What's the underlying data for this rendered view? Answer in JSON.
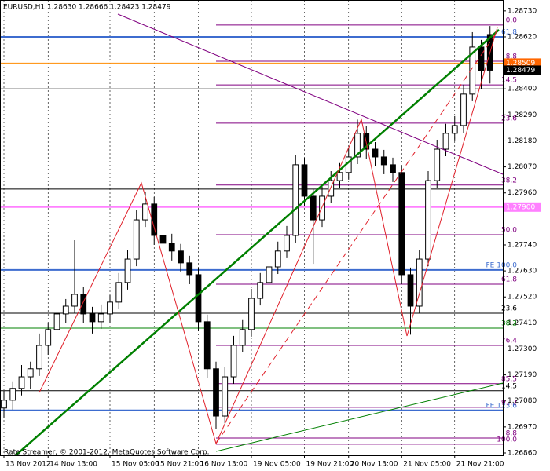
{
  "chart_data": {
    "type": "candlestick",
    "title": "EURUSD,H1  1.28630 1.28666 1.28423 1.28479",
    "watermark": "Rate Streamer, © 2001-2012, MetaQuotes Software Corp.",
    "ylim": [
      1.2685,
      1.28776
    ],
    "yticks": [
      {
        "value": 1.2873,
        "label": "1.28730"
      },
      {
        "value": 1.2862,
        "label": "1.28620"
      },
      {
        "value": 1.284,
        "label": "1.28400"
      },
      {
        "value": 1.2829,
        "label": "1.28290"
      },
      {
        "value": 1.2818,
        "label": "1.28180"
      },
      {
        "value": 1.2807,
        "label": "1.28070"
      },
      {
        "value": 1.2796,
        "label": "1.27960"
      },
      {
        "value": 1.2774,
        "label": "1.27740"
      },
      {
        "value": 1.2763,
        "label": "1.27630"
      },
      {
        "value": 1.2752,
        "label": "1.27520"
      },
      {
        "value": 1.2741,
        "label": "1.27410"
      },
      {
        "value": 1.273,
        "label": "1.27300"
      },
      {
        "value": 1.2719,
        "label": "1.27190"
      },
      {
        "value": 1.2708,
        "label": "1.27080"
      },
      {
        "value": 1.2697,
        "label": "1.26970"
      },
      {
        "value": 1.2686,
        "label": "1.26860"
      }
    ],
    "categories": [
      "13 Nov 2012",
      null,
      null,
      null,
      null,
      "14 Nov 13:00",
      null,
      null,
      null,
      null,
      null,
      null,
      "15 Nov 05:00",
      null,
      null,
      null,
      null,
      "15 Nov 21:00",
      null,
      null,
      null,
      null,
      "16 Nov 13:00",
      null,
      null,
      null,
      null,
      null,
      "19 Nov 05:00",
      null,
      null,
      null,
      null,
      null,
      "19 Nov 21:00",
      null,
      null,
      null,
      null,
      "20 Nov 13:00",
      null,
      null,
      null,
      null,
      null,
      "21 Nov 05:00",
      null,
      null,
      null,
      null,
      null,
      "21 Nov 21:00",
      null,
      null,
      null,
      null
    ],
    "open": [
      1.2705,
      1.27083,
      1.27133,
      1.27182,
      1.27216,
      1.27315,
      1.27382,
      1.27448,
      1.27481,
      1.27531,
      1.27448,
      1.27415,
      1.27448,
      1.27498,
      1.27581,
      1.2768,
      1.27846,
      1.27913,
      1.2778,
      1.27747,
      1.27714,
      1.27664,
      1.27614,
      1.27415,
      1.27216,
      1.27016,
      1.27182,
      1.27315,
      1.27382,
      1.27514,
      1.27581,
      1.27647,
      1.27714,
      1.2778,
      1.28079,
      1.27946,
      1.27846,
      1.27946,
      1.28012,
      1.28046,
      1.28112,
      1.28212,
      1.28145,
      1.28112,
      1.28079,
      1.28046,
      1.27614,
      1.27481,
      1.2768,
      1.28012,
      1.28145,
      1.28212,
      1.28245,
      1.28378,
      1.28577,
      1.2863
    ],
    "high": [
      1.27123,
      1.27163,
      1.27232,
      1.27246,
      1.27365,
      1.27412,
      1.27498,
      1.27511,
      1.2776,
      1.27561,
      1.27478,
      1.27488,
      1.27528,
      1.27621,
      1.2772,
      1.27886,
      1.27963,
      1.27943,
      1.2782,
      1.27787,
      1.27744,
      1.27694,
      1.27644,
      1.27445,
      1.27246,
      1.27222,
      1.27355,
      1.27422,
      1.27554,
      1.27621,
      1.27687,
      1.27754,
      1.2782,
      1.28119,
      1.28109,
      1.27976,
      1.27986,
      1.28052,
      1.28086,
      1.28152,
      1.2827,
      1.28242,
      1.28175,
      1.28142,
      1.28109,
      1.28076,
      1.27644,
      1.2772,
      1.28052,
      1.28185,
      1.28252,
      1.28285,
      1.28418,
      1.2864,
      1.28607,
      1.28666
    ],
    "low": [
      1.2701,
      1.27043,
      1.27103,
      1.27132,
      1.27186,
      1.27275,
      1.27352,
      1.27408,
      1.27451,
      1.27408,
      1.27365,
      1.27385,
      1.27408,
      1.27468,
      1.27551,
      1.2765,
      1.27816,
      1.2774,
      1.27707,
      1.27674,
      1.27624,
      1.27574,
      1.27375,
      1.27176,
      1.2696,
      1.26986,
      1.27152,
      1.27285,
      1.27352,
      1.27484,
      1.27551,
      1.27617,
      1.27684,
      1.2775,
      1.27906,
      1.2766,
      1.27816,
      1.27916,
      1.27982,
      1.28016,
      1.28082,
      1.28105,
      1.28072,
      1.28039,
      1.28006,
      1.27574,
      1.2736,
      1.27451,
      1.2765,
      1.27982,
      1.28115,
      1.28182,
      1.28215,
      1.28348,
      1.284,
      1.28423
    ],
    "close": [
      1.27083,
      1.27133,
      1.27182,
      1.27216,
      1.27315,
      1.27382,
      1.27448,
      1.27481,
      1.27531,
      1.27448,
      1.27415,
      1.27448,
      1.27498,
      1.27581,
      1.2768,
      1.27846,
      1.27913,
      1.2778,
      1.27747,
      1.27714,
      1.27664,
      1.27614,
      1.27415,
      1.27216,
      1.27016,
      1.27182,
      1.27315,
      1.27382,
      1.27514,
      1.27581,
      1.27647,
      1.27714,
      1.2778,
      1.28079,
      1.27946,
      1.27846,
      1.27946,
      1.28012,
      1.28046,
      1.28112,
      1.28212,
      1.28145,
      1.28112,
      1.28079,
      1.28046,
      1.27614,
      1.27481,
      1.2768,
      1.28012,
      1.28145,
      1.28212,
      1.28245,
      1.28378,
      1.28577,
      1.28477,
      1.28479
    ],
    "levels": [
      {
        "label": "0.0",
        "value": 1.2867,
        "color": "#800080"
      },
      {
        "label": "61.8",
        "value": 1.2862,
        "color": "#3d6ccf",
        "width": 2
      },
      {
        "label": "8.8",
        "value": 1.28517,
        "color": "#800080"
      },
      {
        "value": 1.28509,
        "color": "#ff8c00"
      },
      {
        "label": "14.5",
        "value": 1.28417,
        "color": "#800080"
      },
      {
        "value": 1.284,
        "color": "#000000"
      },
      {
        "label": "23.6",
        "value": 1.28255,
        "color": "#800080"
      },
      {
        "label": "38.2",
        "value": 1.27993,
        "color": "#800080"
      },
      {
        "value": 1.27976,
        "color": "#000000"
      },
      {
        "value": 1.279,
        "color": "#ff80ff",
        "width": 2
      },
      {
        "label": "50.0",
        "value": 1.27783,
        "color": "#800080"
      },
      {
        "label": "FE 100.0",
        "value": 1.27634,
        "color": "#3d6ccf",
        "width": 2
      },
      {
        "label": "61.8",
        "value": 1.27574,
        "color": "#800080"
      },
      {
        "label": "23.6",
        "value": 1.27451,
        "color": "#000000"
      },
      {
        "label": "38.2",
        "value": 1.27388,
        "color": "#008000"
      },
      {
        "label": "76.4",
        "value": 1.27315,
        "color": "#800080"
      },
      {
        "label": "85.5",
        "value": 1.27153,
        "color": "#800080"
      },
      {
        "label": "14.5",
        "value": 1.27123,
        "color": "#000000"
      },
      {
        "label": "91.2",
        "value": 1.27053,
        "color": "#800080"
      },
      {
        "label": "FE 123.6",
        "value": 1.2704,
        "color": "#3d6ccf",
        "width": 2
      },
      {
        "label": "8.8",
        "value": 1.26923,
        "color": "#800080"
      },
      {
        "label": "100.0",
        "value": 1.26897,
        "color": "#800080"
      }
    ],
    "price_labels": [
      {
        "value": 1.28509,
        "color": "#ff6600"
      },
      {
        "value": 1.28479,
        "color": "#000000"
      },
      {
        "value": 1.279,
        "label": "1.27900",
        "color": "#ff80ff"
      }
    ]
  }
}
